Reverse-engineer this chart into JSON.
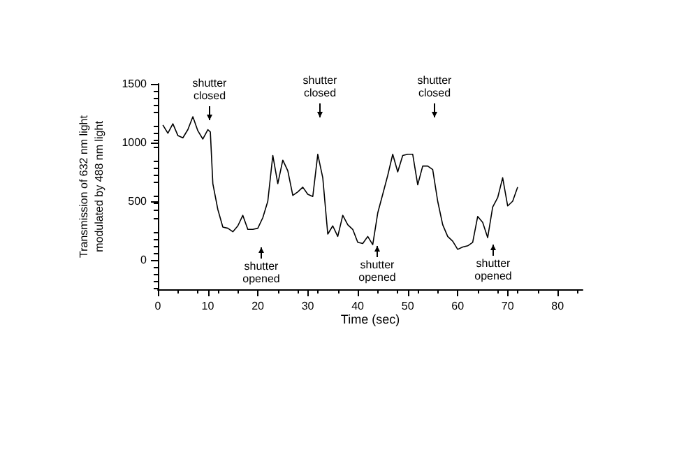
{
  "chart_data": {
    "type": "line",
    "xlabel": "Time (sec)",
    "ylabel": "Transmission of 632 nm light\nmodulated by 488 nm light",
    "xlim": [
      0,
      85
    ],
    "xticks": [
      0,
      10,
      20,
      30,
      40,
      50,
      60,
      70,
      80
    ],
    "ylim": [
      -250,
      1500
    ],
    "yticks": [
      0,
      500,
      1000,
      1500
    ],
    "grid": false,
    "marker": "none",
    "line_style": "solid",
    "series": [
      {
        "color": "#000000",
        "x": [
          1,
          2,
          3,
          4,
          5,
          6,
          7,
          8,
          9,
          10,
          10.5,
          11,
          12,
          13,
          14,
          15,
          16,
          17,
          18,
          19,
          20,
          21,
          22,
          23,
          24,
          25,
          26,
          27,
          28,
          29,
          30,
          31,
          32,
          33,
          34,
          35,
          36,
          37,
          38,
          39,
          40,
          41,
          42,
          43,
          44,
          45,
          46,
          47,
          48,
          49,
          50,
          51,
          52,
          53,
          54,
          55,
          56,
          57,
          58,
          59,
          60,
          61,
          62,
          63,
          64,
          65,
          66,
          67,
          68,
          69,
          70,
          71,
          72
        ],
        "values": [
          1150,
          1080,
          1160,
          1060,
          1040,
          1110,
          1220,
          1100,
          1030,
          1110,
          1090,
          650,
          430,
          280,
          270,
          240,
          290,
          380,
          260,
          260,
          270,
          360,
          500,
          890,
          650,
          850,
          760,
          550,
          580,
          620,
          560,
          540,
          900,
          700,
          220,
          290,
          200,
          380,
          300,
          260,
          150,
          140,
          200,
          130,
          400,
          560,
          720,
          900,
          750,
          890,
          900,
          900,
          640,
          800,
          800,
          770,
          500,
          300,
          200,
          160,
          90,
          110,
          120,
          150,
          370,
          320,
          190,
          450,
          530,
          700,
          460,
          500,
          620
        ]
      }
    ],
    "annotations": [
      "shutter\nclosed",
      "shutter\nclosed",
      "shutter\nclosed",
      "shutter\nopened",
      "shutter\nopened",
      "shutter\nopened"
    ]
  }
}
